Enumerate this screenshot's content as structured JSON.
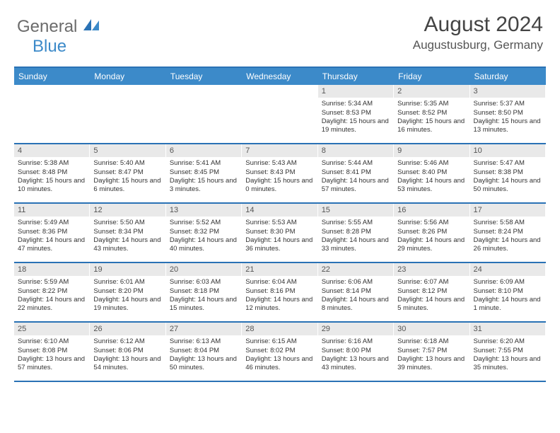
{
  "logo": {
    "general": "General",
    "blue": "Blue"
  },
  "title": "August 2024",
  "location": "Augustusburg, Germany",
  "colors": {
    "headerBar": "#3c8ac9",
    "borderBlue": "#2a72b5",
    "dayNumBg": "#e9e9e9",
    "textDark": "#333333",
    "textMid": "#555555",
    "logoGray": "#6b6b6b"
  },
  "dow": [
    "Sunday",
    "Monday",
    "Tuesday",
    "Wednesday",
    "Thursday",
    "Friday",
    "Saturday"
  ],
  "weeks": [
    [
      null,
      null,
      null,
      null,
      {
        "n": "1",
        "sr": "5:34 AM",
        "ss": "8:53 PM",
        "dl": "15 hours and 19 minutes."
      },
      {
        "n": "2",
        "sr": "5:35 AM",
        "ss": "8:52 PM",
        "dl": "15 hours and 16 minutes."
      },
      {
        "n": "3",
        "sr": "5:37 AM",
        "ss": "8:50 PM",
        "dl": "15 hours and 13 minutes."
      }
    ],
    [
      {
        "n": "4",
        "sr": "5:38 AM",
        "ss": "8:48 PM",
        "dl": "15 hours and 10 minutes."
      },
      {
        "n": "5",
        "sr": "5:40 AM",
        "ss": "8:47 PM",
        "dl": "15 hours and 6 minutes."
      },
      {
        "n": "6",
        "sr": "5:41 AM",
        "ss": "8:45 PM",
        "dl": "15 hours and 3 minutes."
      },
      {
        "n": "7",
        "sr": "5:43 AM",
        "ss": "8:43 PM",
        "dl": "15 hours and 0 minutes."
      },
      {
        "n": "8",
        "sr": "5:44 AM",
        "ss": "8:41 PM",
        "dl": "14 hours and 57 minutes."
      },
      {
        "n": "9",
        "sr": "5:46 AM",
        "ss": "8:40 PM",
        "dl": "14 hours and 53 minutes."
      },
      {
        "n": "10",
        "sr": "5:47 AM",
        "ss": "8:38 PM",
        "dl": "14 hours and 50 minutes."
      }
    ],
    [
      {
        "n": "11",
        "sr": "5:49 AM",
        "ss": "8:36 PM",
        "dl": "14 hours and 47 minutes."
      },
      {
        "n": "12",
        "sr": "5:50 AM",
        "ss": "8:34 PM",
        "dl": "14 hours and 43 minutes."
      },
      {
        "n": "13",
        "sr": "5:52 AM",
        "ss": "8:32 PM",
        "dl": "14 hours and 40 minutes."
      },
      {
        "n": "14",
        "sr": "5:53 AM",
        "ss": "8:30 PM",
        "dl": "14 hours and 36 minutes."
      },
      {
        "n": "15",
        "sr": "5:55 AM",
        "ss": "8:28 PM",
        "dl": "14 hours and 33 minutes."
      },
      {
        "n": "16",
        "sr": "5:56 AM",
        "ss": "8:26 PM",
        "dl": "14 hours and 29 minutes."
      },
      {
        "n": "17",
        "sr": "5:58 AM",
        "ss": "8:24 PM",
        "dl": "14 hours and 26 minutes."
      }
    ],
    [
      {
        "n": "18",
        "sr": "5:59 AM",
        "ss": "8:22 PM",
        "dl": "14 hours and 22 minutes."
      },
      {
        "n": "19",
        "sr": "6:01 AM",
        "ss": "8:20 PM",
        "dl": "14 hours and 19 minutes."
      },
      {
        "n": "20",
        "sr": "6:03 AM",
        "ss": "8:18 PM",
        "dl": "14 hours and 15 minutes."
      },
      {
        "n": "21",
        "sr": "6:04 AM",
        "ss": "8:16 PM",
        "dl": "14 hours and 12 minutes."
      },
      {
        "n": "22",
        "sr": "6:06 AM",
        "ss": "8:14 PM",
        "dl": "14 hours and 8 minutes."
      },
      {
        "n": "23",
        "sr": "6:07 AM",
        "ss": "8:12 PM",
        "dl": "14 hours and 5 minutes."
      },
      {
        "n": "24",
        "sr": "6:09 AM",
        "ss": "8:10 PM",
        "dl": "14 hours and 1 minute."
      }
    ],
    [
      {
        "n": "25",
        "sr": "6:10 AM",
        "ss": "8:08 PM",
        "dl": "13 hours and 57 minutes."
      },
      {
        "n": "26",
        "sr": "6:12 AM",
        "ss": "8:06 PM",
        "dl": "13 hours and 54 minutes."
      },
      {
        "n": "27",
        "sr": "6:13 AM",
        "ss": "8:04 PM",
        "dl": "13 hours and 50 minutes."
      },
      {
        "n": "28",
        "sr": "6:15 AM",
        "ss": "8:02 PM",
        "dl": "13 hours and 46 minutes."
      },
      {
        "n": "29",
        "sr": "6:16 AM",
        "ss": "8:00 PM",
        "dl": "13 hours and 43 minutes."
      },
      {
        "n": "30",
        "sr": "6:18 AM",
        "ss": "7:57 PM",
        "dl": "13 hours and 39 minutes."
      },
      {
        "n": "31",
        "sr": "6:20 AM",
        "ss": "7:55 PM",
        "dl": "13 hours and 35 minutes."
      }
    ]
  ],
  "labels": {
    "sunrise": "Sunrise:",
    "sunset": "Sunset:",
    "daylight": "Daylight:"
  }
}
